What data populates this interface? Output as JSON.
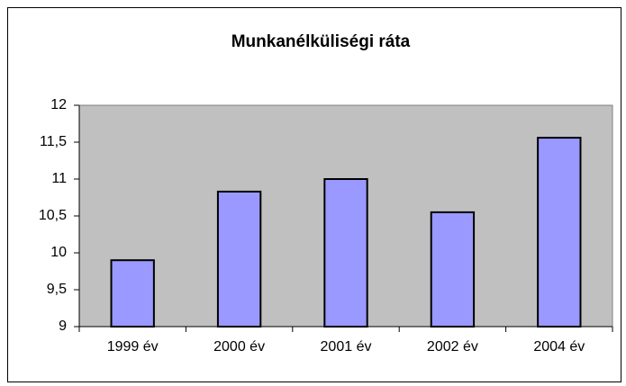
{
  "chart_data": {
    "type": "bar",
    "title": "Munkanélküliségi ráta",
    "categories": [
      "1999 év",
      "2000 év",
      "2001 év",
      "2002 év",
      "2004 év"
    ],
    "values": [
      9.9,
      10.83,
      11.0,
      10.55,
      11.56
    ],
    "color": "#9999ff",
    "ylim": [
      9,
      12
    ],
    "yticks": [
      9,
      {
        "value": 9.5,
        "label": "9,5"
      },
      10,
      {
        "value": 10.5,
        "label": "10,5"
      },
      11,
      {
        "value": 11.5,
        "label": "11,5"
      },
      12
    ],
    "grid": false
  }
}
